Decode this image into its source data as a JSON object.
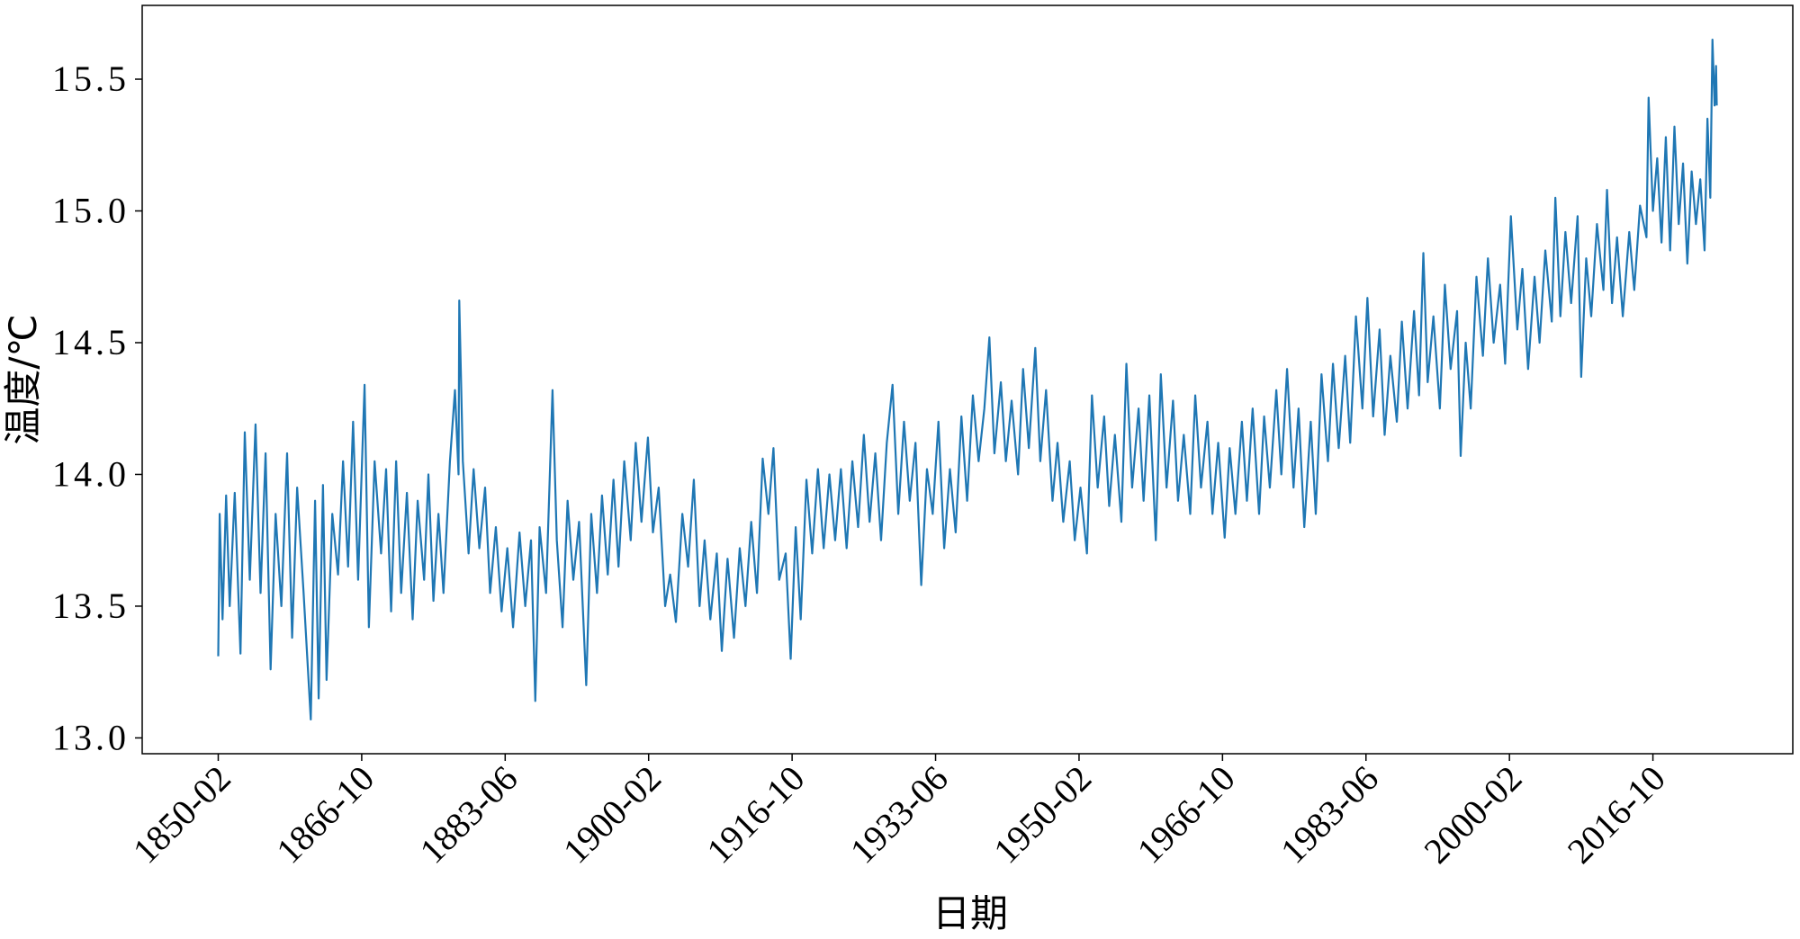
{
  "chart_data": {
    "type": "line",
    "xlabel": "日期",
    "ylabel": "温度/℃",
    "xlim": [
      "1841-04",
      "2033-01"
    ],
    "ylim": [
      12.94,
      15.78
    ],
    "xticks": [
      "1850-02",
      "1866-10",
      "1883-06",
      "1900-02",
      "1916-10",
      "1933-06",
      "1950-02",
      "1966-10",
      "1983-06",
      "2000-02",
      "2016-10"
    ],
    "yticks": [
      {
        "value": 13,
        "label": "13.0"
      },
      13.5,
      {
        "value": 14,
        "label": "14.0"
      },
      14.5,
      {
        "value": 15,
        "label": "15.0"
      },
      15.5
    ],
    "grid": false,
    "x": [
      "1850-02",
      "1850-04",
      "1850-08",
      "1851-01",
      "1851-06",
      "1852-01",
      "1852-09",
      "1853-03",
      "1853-10",
      "1854-06",
      "1855-01",
      "1855-08",
      "1856-03",
      "1856-10",
      "1857-06",
      "1858-02",
      "1858-09",
      "1859-04",
      "1860-01",
      "1860-11",
      "1861-05",
      "1861-10",
      "1862-04",
      "1862-09",
      "1863-05",
      "1864-01",
      "1864-08",
      "1865-03",
      "1865-10",
      "1866-05",
      "1867-02",
      "1867-08",
      "1868-04",
      "1869-01",
      "1869-08",
      "1870-03",
      "1870-10",
      "1871-05",
      "1872-01",
      "1872-09",
      "1873-04",
      "1874-01",
      "1874-07",
      "1875-02",
      "1875-09",
      "1876-04",
      "1877-01",
      "1877-08",
      "1878-01",
      "1878-02",
      "1878-07",
      "1879-03",
      "1879-10",
      "1880-06",
      "1881-02",
      "1881-09",
      "1882-05",
      "1883-01",
      "1883-09",
      "1884-05",
      "1885-02",
      "1885-10",
      "1886-06",
      "1886-12",
      "1887-06",
      "1888-03",
      "1888-12",
      "1889-06",
      "1890-02",
      "1890-09",
      "1891-05",
      "1892-01",
      "1892-11",
      "1893-06",
      "1894-02",
      "1894-09",
      "1895-05",
      "1896-01",
      "1896-08",
      "1897-04",
      "1898-01",
      "1898-08",
      "1899-04",
      "1900-01",
      "1900-08",
      "1901-04",
      "1902-01",
      "1902-08",
      "1903-04",
      "1904-01",
      "1904-09",
      "1905-05",
      "1906-01",
      "1906-08",
      "1907-04",
      "1908-01",
      "1908-08",
      "1909-04",
      "1910-01",
      "1910-09",
      "1911-05",
      "1912-01",
      "1912-09",
      "1913-05",
      "1914-01",
      "1914-08",
      "1915-04",
      "1916-01",
      "1916-08",
      "1917-03",
      "1917-10",
      "1918-06",
      "1919-02",
      "1919-10",
      "1920-06",
      "1921-02",
      "1921-10",
      "1922-06",
      "1923-02",
      "1923-10",
      "1924-06",
      "1925-02",
      "1925-10",
      "1926-06",
      "1927-02",
      "1927-10",
      "1928-06",
      "1929-02",
      "1929-10",
      "1930-06",
      "1931-02",
      "1931-10",
      "1932-06",
      "1933-02",
      "1933-10",
      "1934-06",
      "1935-02",
      "1935-10",
      "1936-06",
      "1937-02",
      "1937-10",
      "1938-06",
      "1939-02",
      "1939-09",
      "1940-04",
      "1941-01",
      "1941-08",
      "1942-04",
      "1943-01",
      "1943-08",
      "1944-04",
      "1945-01",
      "1945-08",
      "1946-04",
      "1947-01",
      "1947-08",
      "1948-04",
      "1949-01",
      "1949-08",
      "1950-04",
      "1951-01",
      "1951-08",
      "1952-04",
      "1953-01",
      "1953-08",
      "1954-04",
      "1955-01",
      "1955-08",
      "1956-04",
      "1957-01",
      "1957-08",
      "1958-04",
      "1959-01",
      "1959-08",
      "1960-04",
      "1961-01",
      "1961-08",
      "1962-04",
      "1963-01",
      "1963-08",
      "1964-04",
      "1965-01",
      "1965-08",
      "1966-04",
      "1967-01",
      "1967-08",
      "1968-04",
      "1969-01",
      "1969-08",
      "1970-04",
      "1971-01",
      "1971-08",
      "1972-04",
      "1973-01",
      "1973-08",
      "1974-04",
      "1975-01",
      "1975-08",
      "1976-04",
      "1977-01",
      "1977-08",
      "1978-04",
      "1979-01",
      "1979-08",
      "1980-04",
      "1981-01",
      "1981-08",
      "1982-04",
      "1983-01",
      "1983-08",
      "1984-04",
      "1985-01",
      "1985-08",
      "1986-04",
      "1987-01",
      "1987-08",
      "1988-04",
      "1989-01",
      "1989-08",
      "1990-02",
      "1990-08",
      "1991-04",
      "1992-01",
      "1992-08",
      "1993-04",
      "1994-01",
      "1994-06",
      "1995-01",
      "1995-08",
      "1996-04",
      "1997-01",
      "1997-08",
      "1998-04",
      "1999-01",
      "1999-08",
      "2000-04",
      "2001-01",
      "2001-08",
      "2002-04",
      "2003-01",
      "2003-08",
      "2004-04",
      "2005-01",
      "2005-06",
      "2006-01",
      "2006-08",
      "2007-04",
      "2008-01",
      "2008-06",
      "2009-01",
      "2009-08",
      "2010-04",
      "2011-01",
      "2011-06",
      "2012-01",
      "2012-08",
      "2013-04",
      "2014-01",
      "2014-08",
      "2015-04",
      "2016-01",
      "2016-04",
      "2016-10",
      "2017-04",
      "2017-10",
      "2018-04",
      "2018-10",
      "2019-04",
      "2019-10",
      "2020-04",
      "2020-10",
      "2021-04",
      "2021-10",
      "2022-04",
      "2022-10",
      "2023-02",
      "2023-06",
      "2023-09",
      "2023-12",
      "2024-02",
      "2024-03"
    ],
    "series": [
      {
        "color": "#1f77b4",
        "values": [
          13.31,
          13.85,
          13.45,
          13.92,
          13.5,
          13.93,
          13.32,
          14.16,
          13.6,
          14.19,
          13.55,
          14.08,
          13.26,
          13.85,
          13.5,
          14.08,
          13.38,
          13.95,
          13.55,
          13.07,
          13.9,
          13.15,
          13.96,
          13.22,
          13.85,
          13.62,
          14.05,
          13.65,
          14.2,
          13.6,
          14.34,
          13.42,
          14.05,
          13.7,
          14.02,
          13.48,
          14.05,
          13.55,
          13.93,
          13.45,
          13.9,
          13.6,
          14.0,
          13.52,
          13.85,
          13.55,
          14.05,
          14.32,
          14.0,
          14.66,
          14.05,
          13.7,
          14.02,
          13.72,
          13.95,
          13.55,
          13.8,
          13.48,
          13.72,
          13.42,
          13.78,
          13.5,
          13.75,
          13.14,
          13.8,
          13.55,
          14.32,
          13.75,
          13.42,
          13.9,
          13.6,
          13.82,
          13.2,
          13.85,
          13.55,
          13.92,
          13.62,
          13.98,
          13.65,
          14.05,
          13.75,
          14.12,
          13.82,
          14.14,
          13.78,
          13.95,
          13.5,
          13.62,
          13.44,
          13.85,
          13.65,
          13.98,
          13.5,
          13.75,
          13.45,
          13.7,
          13.33,
          13.68,
          13.38,
          13.72,
          13.5,
          13.82,
          13.55,
          14.06,
          13.85,
          14.1,
          13.6,
          13.7,
          13.3,
          13.8,
          13.45,
          13.98,
          13.7,
          14.02,
          13.72,
          14.0,
          13.75,
          14.02,
          13.72,
          14.05,
          13.8,
          14.15,
          13.82,
          14.08,
          13.75,
          14.12,
          14.34,
          13.85,
          14.2,
          13.9,
          14.12,
          13.58,
          14.02,
          13.85,
          14.2,
          13.72,
          14.02,
          13.78,
          14.22,
          13.9,
          14.3,
          14.05,
          14.25,
          14.52,
          14.08,
          14.35,
          14.05,
          14.28,
          14.0,
          14.4,
          14.1,
          14.48,
          14.05,
          14.32,
          13.9,
          14.12,
          13.82,
          14.05,
          13.75,
          13.95,
          13.7,
          14.3,
          13.95,
          14.22,
          13.88,
          14.15,
          13.82,
          14.42,
          13.95,
          14.25,
          13.9,
          14.3,
          13.75,
          14.38,
          13.95,
          14.28,
          13.9,
          14.15,
          13.85,
          14.3,
          13.95,
          14.2,
          13.85,
          14.12,
          13.76,
          14.1,
          13.85,
          14.2,
          13.9,
          14.25,
          13.85,
          14.22,
          13.95,
          14.32,
          14.0,
          14.4,
          13.95,
          14.25,
          13.8,
          14.2,
          13.85,
          14.38,
          14.05,
          14.42,
          14.1,
          14.45,
          14.12,
          14.6,
          14.25,
          14.67,
          14.22,
          14.55,
          14.15,
          14.45,
          14.2,
          14.58,
          14.25,
          14.62,
          14.3,
          14.84,
          14.35,
          14.6,
          14.25,
          14.72,
          14.4,
          14.62,
          14.07,
          14.5,
          14.25,
          14.75,
          14.45,
          14.82,
          14.5,
          14.72,
          14.42,
          14.98,
          14.55,
          14.78,
          14.4,
          14.75,
          14.5,
          14.85,
          14.58,
          15.05,
          14.6,
          14.92,
          14.65,
          14.98,
          14.37,
          14.82,
          14.6,
          14.95,
          14.7,
          15.08,
          14.65,
          14.9,
          14.6,
          14.92,
          14.7,
          15.02,
          14.9,
          15.43,
          15.0,
          15.2,
          14.88,
          15.28,
          14.85,
          15.32,
          14.95,
          15.18,
          14.8,
          15.15,
          14.95,
          15.12,
          14.85,
          15.35,
          15.05,
          15.65,
          15.4,
          15.55,
          15.4
        ]
      }
    ]
  }
}
